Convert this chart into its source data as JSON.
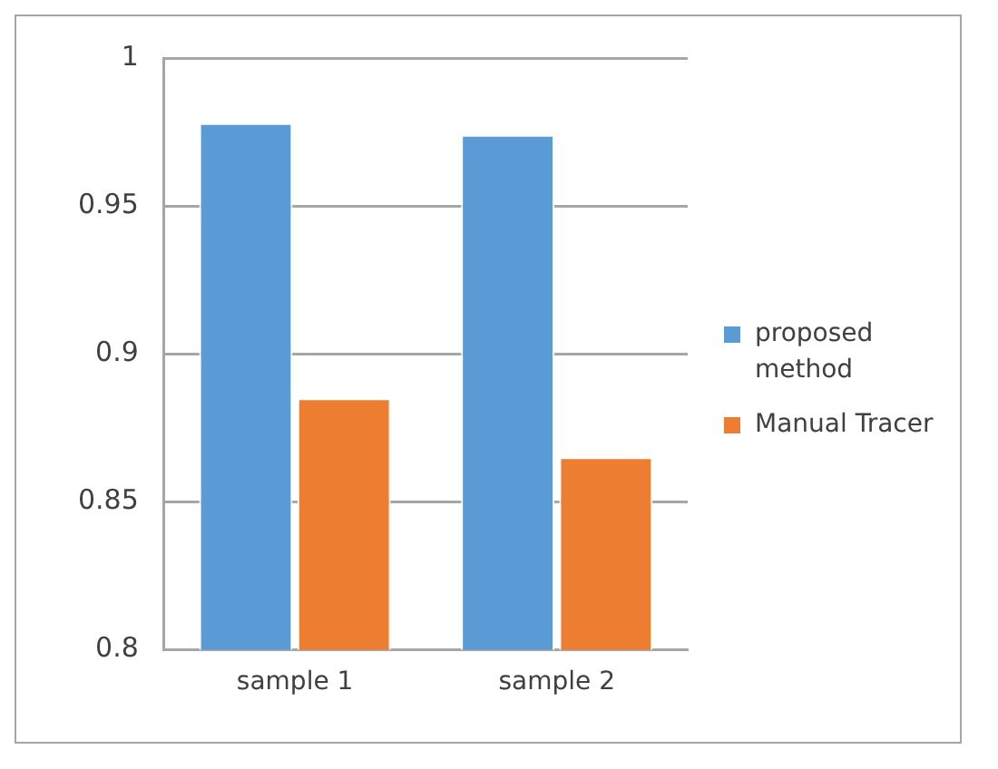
{
  "chart_data": {
    "type": "bar",
    "categories": [
      "sample 1",
      "sample 2"
    ],
    "series": [
      {
        "name": "proposed method",
        "color": "#5b9bd5",
        "values": [
          0.978,
          0.974
        ]
      },
      {
        "name": "Manual Tracer",
        "color": "#ed7d31",
        "values": [
          0.885,
          0.865
        ]
      }
    ],
    "ylim": [
      0.8,
      1
    ],
    "yticks": [
      0.8,
      0.85,
      0.9,
      0.95,
      1
    ],
    "grid": "y",
    "legend": "right"
  }
}
